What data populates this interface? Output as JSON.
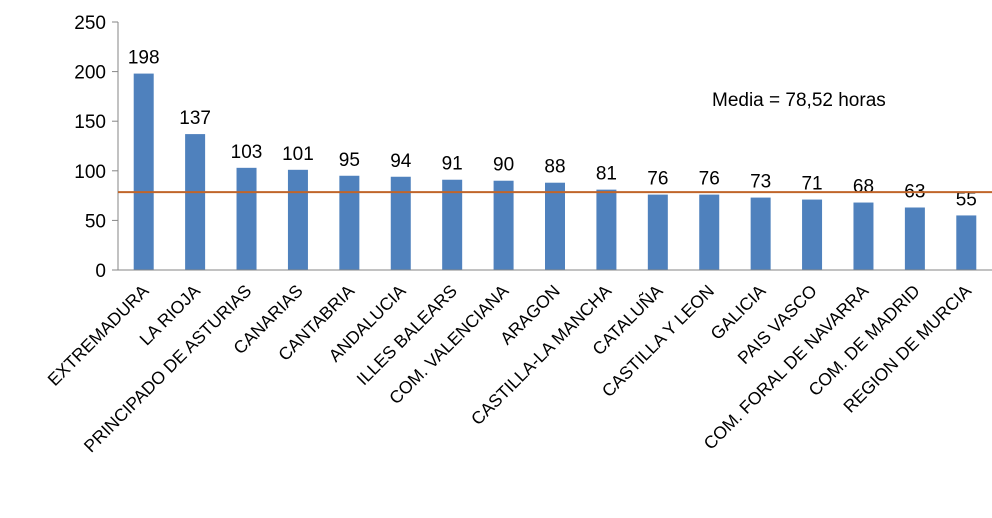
{
  "chart_data": {
    "type": "bar",
    "categories": [
      "EXTREMADURA",
      "LA RIOJA",
      "PRINCIPADO DE ASTURIAS",
      "CANARIAS",
      "CANTABRIA",
      "ANDALUCIA",
      "ILLES BALEARS",
      "COM. VALENCIANA",
      "ARAGON",
      "CASTILLA-LA MANCHA",
      "CATALUÑA",
      "CASTILLA Y LEON",
      "GALICIA",
      "PAIS VASCO",
      "COM. FORAL DE NAVARRA",
      "COM. DE MADRID",
      "REGION DE MURCIA"
    ],
    "values": [
      198,
      137,
      103,
      101,
      95,
      94,
      91,
      90,
      88,
      81,
      76,
      76,
      73,
      71,
      68,
      63,
      55
    ],
    "reference_line": {
      "value": 78.52,
      "label": "Media = 78,52 horas"
    },
    "ylim": [
      0,
      250
    ],
    "yticks": [
      0,
      50,
      100,
      150,
      200,
      250
    ],
    "title": "",
    "xlabel": "",
    "ylabel": "",
    "grid": false,
    "legend": "none",
    "colors": {
      "bar": "#4f81bd",
      "reference_line": "#c0652a",
      "axis": "#868686"
    }
  }
}
